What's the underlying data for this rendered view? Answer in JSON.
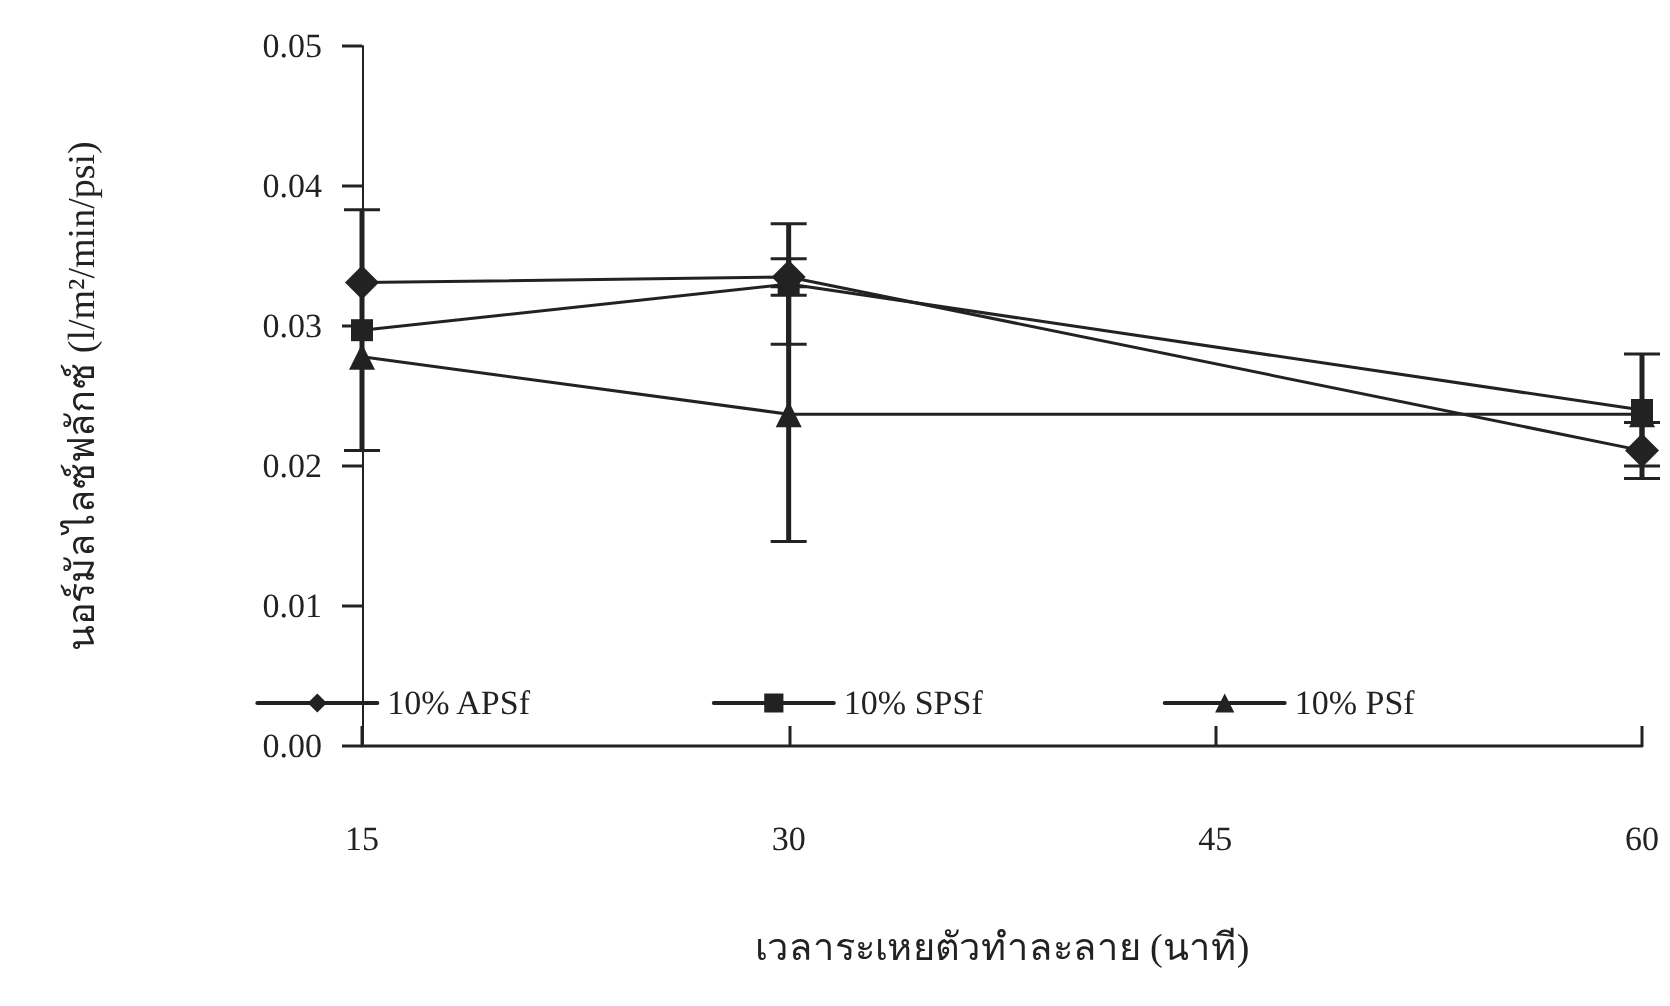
{
  "chart_data": {
    "type": "line",
    "xlabel": "เวลาระเหยตัวทำละลาย (นาที)",
    "ylabel": "นอร์มัลไลซ์ฟลักซ์ (l/m²/min/psi)",
    "x": [
      15,
      30,
      60
    ],
    "series": [
      {
        "name": "10% APSf",
        "color": "#222222",
        "marker": "diamond",
        "values": [
          0.0331,
          0.0335,
          0.0211
        ],
        "errors": [
          null,
          0.0013,
          0.002
        ]
      },
      {
        "name": "10% SPSf",
        "color": "#222222",
        "marker": "square",
        "values": [
          0.0297,
          0.033,
          0.024
        ],
        "errors": [
          0.0086,
          0.0043,
          0.004
        ]
      },
      {
        "name": "10% PSf",
        "color": "#222222",
        "marker": "triangle",
        "values": [
          0.0278,
          0.0237,
          0.0237
        ],
        "errors": [
          null,
          0.0091,
          null
        ]
      }
    ],
    "xlim": [
      15,
      60
    ],
    "xticks": [
      15,
      30,
      45,
      60
    ],
    "ylim": [
      0,
      0.05
    ],
    "yticks": [
      {
        "value": 0,
        "label": "0.00"
      },
      {
        "value": 0.01,
        "label": "0.01"
      },
      {
        "value": 0.02,
        "label": "0.02"
      },
      {
        "value": 0.03,
        "label": "0.03"
      },
      {
        "value": 0.04,
        "label": "0.04"
      },
      {
        "value": 0.05,
        "label": "0.05"
      }
    ],
    "grid": false,
    "legend": "bottom",
    "line_style": "solid"
  }
}
